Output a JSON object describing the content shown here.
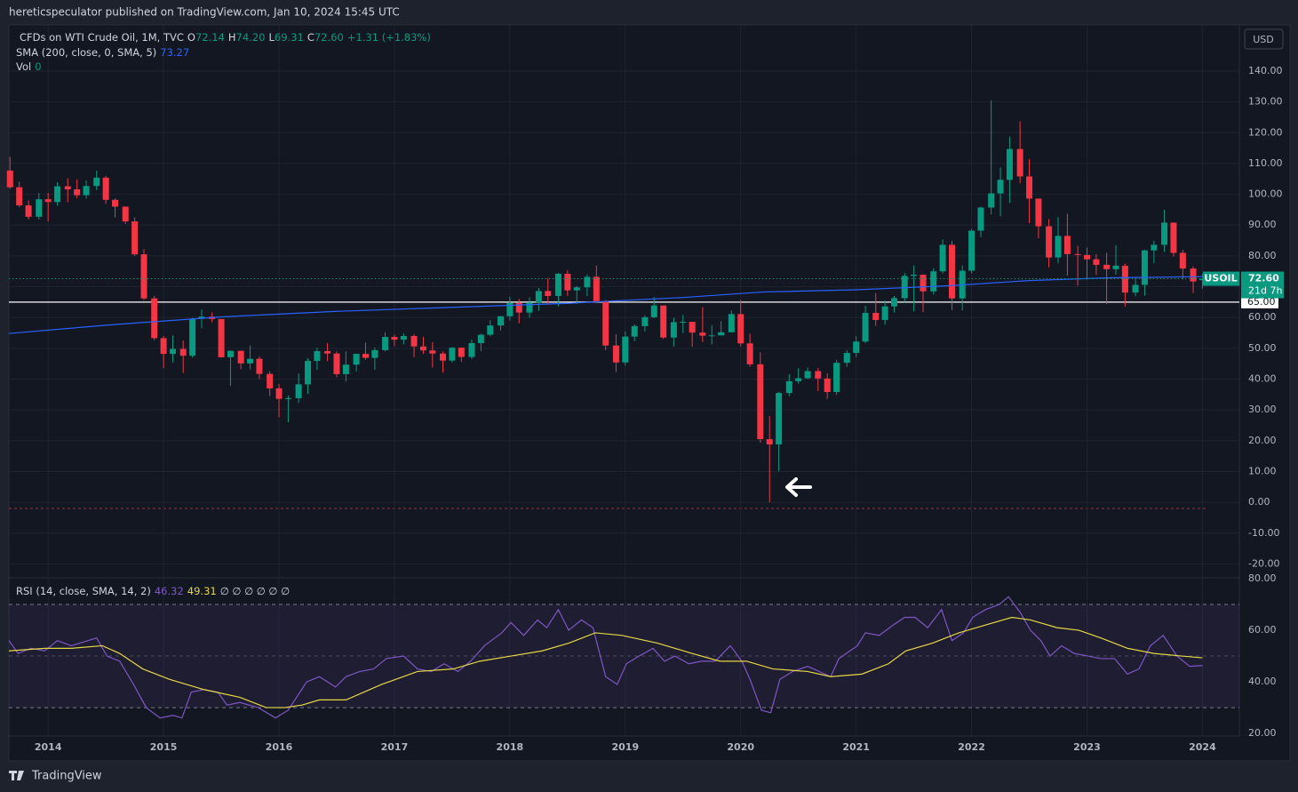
{
  "header": {
    "text": "hereticspeculator published on TradingView.com, Jan 10, 2024 15:45 UTC"
  },
  "footer": {
    "brand": "TradingView"
  },
  "chart_data": {
    "type": "candlestick",
    "title": "CFDs on WTI Crude Oil, 1M, TVC",
    "symbol": "USOIL",
    "currency": "USD",
    "countdown": "21d 7h",
    "change": "+1.31 (+1.83%)",
    "last_labels": [
      "72.14",
      "74.20",
      "69.31",
      "72.60"
    ],
    "up_color": "#089981",
    "down_color": "#f23645",
    "x": [
      2013.67,
      2013.75,
      2013.83,
      2013.92,
      2014.0,
      2014.08,
      2014.17,
      2014.25,
      2014.33,
      2014.42,
      2014.5,
      2014.58,
      2014.67,
      2014.75,
      2014.83,
      2014.92,
      2015.0,
      2015.08,
      2015.17,
      2015.25,
      2015.33,
      2015.42,
      2015.5,
      2015.58,
      2015.67,
      2015.75,
      2015.83,
      2015.92,
      2016.0,
      2016.08,
      2016.17,
      2016.25,
      2016.33,
      2016.42,
      2016.5,
      2016.58,
      2016.67,
      2016.75,
      2016.83,
      2016.92,
      2017.0,
      2017.08,
      2017.17,
      2017.25,
      2017.33,
      2017.42,
      2017.5,
      2017.58,
      2017.67,
      2017.75,
      2017.83,
      2017.92,
      2018.0,
      2018.08,
      2018.17,
      2018.25,
      2018.33,
      2018.42,
      2018.5,
      2018.58,
      2018.67,
      2018.75,
      2018.83,
      2018.92,
      2019.0,
      2019.08,
      2019.17,
      2019.25,
      2019.33,
      2019.42,
      2019.5,
      2019.58,
      2019.67,
      2019.75,
      2019.83,
      2019.92,
      2020.0,
      2020.08,
      2020.17,
      2020.25,
      2020.33,
      2020.42,
      2020.5,
      2020.58,
      2020.67,
      2020.75,
      2020.83,
      2020.92,
      2021.0,
      2021.08,
      2021.17,
      2021.25,
      2021.33,
      2021.42,
      2021.5,
      2021.58,
      2021.67,
      2021.75,
      2021.83,
      2021.92,
      2022.0,
      2022.08,
      2022.17,
      2022.25,
      2022.33,
      2022.42,
      2022.5,
      2022.58,
      2022.67,
      2022.75,
      2022.83,
      2022.92,
      2023.0,
      2023.08,
      2023.17,
      2023.25,
      2023.33,
      2023.42,
      2023.5,
      2023.58,
      2023.67,
      2023.75,
      2023.83,
      2023.92,
      2024.0
    ],
    "open": [
      107.7,
      102.3,
      96.4,
      92.7,
      98.4,
      97.5,
      102.6,
      101.6,
      99.7,
      102.7,
      105.4,
      98.2,
      96.0,
      91.2,
      80.5,
      66.2,
      53.3,
      48.2,
      49.8,
      47.6,
      59.6,
      60.3,
      59.5,
      47.1,
      49.2,
      45.1,
      46.6,
      41.7,
      37.0,
      33.6,
      33.8,
      38.3,
      45.9,
      49.1,
      48.3,
      41.6,
      44.7,
      48.2,
      46.9,
      49.4,
      53.7,
      52.8,
      54.0,
      50.6,
      49.3,
      48.3,
      46.0,
      50.2,
      47.2,
      51.7,
      54.4,
      57.4,
      60.4,
      64.7,
      61.6,
      64.9,
      68.6,
      67.0,
      74.2,
      68.8,
      69.8,
      73.2,
      65.3,
      50.9,
      45.4,
      53.8,
      57.2,
      60.1,
      63.9,
      53.5,
      58.5,
      58.6,
      55.1,
      54.1,
      54.2,
      55.2,
      61.1,
      51.6,
      44.8,
      20.5,
      18.8,
      35.5,
      39.3,
      40.3,
      42.6,
      40.2,
      35.8,
      45.3,
      48.5,
      52.2,
      61.5,
      59.2,
      63.6,
      66.3,
      73.5,
      73.9,
      68.5,
      75.0,
      83.6,
      66.2,
      75.2,
      88.2,
      95.7,
      100.3,
      104.7,
      114.7,
      105.8,
      98.6,
      89.6,
      79.5,
      86.5,
      80.6,
      80.3,
      78.9,
      77.1,
      75.7,
      76.8,
      68.1,
      70.6,
      81.8,
      83.6,
      90.8,
      81.0,
      75.9,
      72.14
    ],
    "high": [
      112.2,
      104.1,
      98.0,
      100.4,
      100.4,
      103.9,
      105.2,
      104.9,
      104.5,
      107.7,
      106.0,
      98.7,
      95.9,
      92.5,
      82.2,
      67.0,
      54.0,
      54.2,
      52.5,
      59.9,
      62.6,
      61.7,
      59.5,
      49.3,
      49.0,
      50.9,
      47.3,
      42.6,
      38.4,
      34.7,
      41.9,
      46.8,
      50.2,
      51.7,
      49.0,
      49.0,
      48.3,
      51.9,
      50.2,
      55.2,
      54.4,
      54.9,
      54.6,
      53.7,
      52.0,
      49.0,
      50.4,
      50.2,
      52.9,
      54.7,
      59.1,
      60.5,
      66.7,
      66.0,
      66.6,
      69.6,
      72.9,
      74.5,
      75.3,
      70.2,
      74.0,
      76.9,
      65.7,
      54.6,
      55.5,
      57.8,
      60.7,
      66.6,
      63.8,
      59.9,
      60.9,
      56.9,
      63.4,
      57.5,
      58.8,
      62.3,
      65.7,
      54.7,
      48.7,
      28.0,
      35.9,
      41.6,
      43.5,
      43.8,
      43.6,
      41.9,
      46.3,
      49.4,
      53.9,
      63.8,
      67.9,
      65.5,
      67.0,
      74.5,
      76.9,
      74.0,
      76.0,
      85.4,
      84.9,
      76.9,
      88.8,
      96.0,
      130.5,
      108.7,
      118.7,
      123.7,
      111.4,
      97.7,
      92.0,
      92.6,
      93.7,
      83.3,
      82.7,
      80.6,
      81.0,
      83.5,
      77.5,
      72.7,
      82.0,
      84.9,
      95.0,
      90.8,
      82.0,
      76.6,
      74.2
    ],
    "low": [
      101.8,
      95.8,
      91.8,
      91.8,
      91.2,
      96.3,
      97.4,
      98.7,
      98.6,
      101.4,
      96.9,
      92.5,
      90.4,
      80.0,
      65.7,
      52.6,
      43.6,
      45.4,
      42.0,
      47.0,
      56.5,
      58.4,
      47.0,
      37.8,
      43.2,
      43.1,
      40.0,
      34.5,
      27.6,
      26.0,
      32.3,
      35.2,
      43.0,
      45.8,
      40.6,
      39.2,
      42.5,
      46.3,
      43.0,
      49.0,
      50.7,
      51.3,
      47.1,
      48.2,
      43.8,
      42.1,
      45.4,
      45.6,
      46.5,
      49.1,
      53.9,
      55.8,
      59.0,
      58.1,
      59.9,
      62.1,
      64.2,
      63.6,
      67.0,
      64.4,
      67.0,
      64.9,
      49.4,
      42.3,
      44.4,
      52.3,
      55.4,
      59.8,
      53.0,
      50.6,
      55.0,
      50.5,
      52.0,
      51.3,
      55.0,
      55.4,
      50.6,
      44.0,
      19.3,
      0.0,
      10.1,
      34.5,
      38.5,
      40.0,
      36.1,
      33.6,
      34.9,
      44.0,
      47.1,
      51.7,
      57.3,
      57.6,
      61.6,
      65.0,
      62.0,
      61.7,
      67.5,
      74.3,
      62.4,
      62.3,
      74.3,
      86.1,
      93.5,
      92.9,
      97.2,
      103.6,
      90.6,
      85.7,
      76.3,
      77.6,
      73.6,
      70.3,
      72.3,
      73.8,
      64.4,
      73.9,
      63.6,
      66.9,
      67.1,
      77.6,
      81.3,
      79.8,
      72.4,
      67.9,
      69.31
    ],
    "close": [
      102.3,
      96.4,
      92.7,
      98.4,
      97.5,
      102.6,
      101.6,
      99.7,
      102.7,
      105.4,
      98.2,
      96.0,
      91.2,
      80.5,
      66.2,
      53.3,
      48.2,
      49.8,
      47.6,
      59.6,
      60.3,
      59.5,
      47.1,
      49.2,
      45.1,
      46.6,
      41.7,
      37.0,
      33.6,
      33.8,
      38.3,
      45.9,
      49.1,
      48.3,
      41.6,
      44.7,
      48.2,
      46.9,
      49.4,
      53.7,
      52.8,
      54.0,
      50.6,
      49.3,
      48.3,
      46.0,
      50.2,
      47.2,
      51.7,
      54.4,
      57.4,
      60.4,
      64.7,
      61.6,
      64.9,
      68.6,
      67.0,
      74.2,
      68.8,
      69.8,
      73.2,
      65.3,
      50.9,
      45.4,
      53.8,
      57.2,
      60.1,
      63.9,
      53.5,
      58.5,
      58.6,
      55.1,
      54.1,
      54.2,
      55.2,
      61.1,
      51.6,
      44.8,
      20.5,
      18.8,
      35.5,
      39.3,
      40.3,
      42.6,
      40.2,
      35.8,
      45.3,
      48.5,
      52.2,
      61.5,
      59.2,
      63.6,
      66.3,
      73.5,
      73.9,
      68.5,
      75.0,
      83.6,
      66.2,
      75.2,
      88.2,
      95.7,
      100.3,
      104.7,
      114.7,
      105.8,
      98.6,
      89.6,
      79.5,
      86.5,
      80.6,
      80.3,
      78.9,
      77.1,
      75.7,
      76.8,
      68.1,
      70.6,
      81.8,
      83.6,
      90.8,
      81.0,
      75.9,
      71.7,
      72.6
    ],
    "xlim": [
      2013.66,
      2024.32
    ],
    "xticks": [
      2014,
      2015,
      2016,
      2017,
      2018,
      2019,
      2020,
      2021,
      2022,
      2023,
      2024
    ],
    "ylim": [
      -24.5,
      155
    ],
    "yticks": [
      {
        "value": -20,
        "label": "-20.00"
      },
      {
        "value": -10,
        "label": "-10.00"
      },
      {
        "value": 0,
        "label": "0.00"
      },
      {
        "value": 10,
        "label": "10.00"
      },
      {
        "value": 20,
        "label": "20.00"
      },
      {
        "value": 30,
        "label": "30.00"
      },
      {
        "value": 40,
        "label": "40.00"
      },
      {
        "value": 50,
        "label": "50.00"
      },
      {
        "value": 60,
        "label": "60.00"
      },
      {
        "value": 70,
        "label": "70.00"
      },
      {
        "value": 80,
        "label": "80.00"
      },
      {
        "value": 90,
        "label": "90.00"
      },
      {
        "value": 100,
        "label": "100.00"
      },
      {
        "value": 110,
        "label": "110.00"
      },
      {
        "value": 120,
        "label": "120.00"
      },
      {
        "value": 130,
        "label": "130.00"
      },
      {
        "value": 140,
        "label": "140.00"
      }
    ],
    "grid": true,
    "hline": {
      "value": 65,
      "label": "65.00",
      "color": "#ffffff"
    },
    "sma": {
      "name": "SMA (200, close, 0, SMA, 5)",
      "color": "#2962ff",
      "x": [
        2013.66,
        2014.5,
        2015.5,
        2016.5,
        2017.5,
        2018.5,
        2019.5,
        2020.2,
        2021.0,
        2021.8,
        2022.5,
        2023.2,
        2024.0
      ],
      "values": [
        54.8,
        57.5,
        60.2,
        62.0,
        63.3,
        64.6,
        66.5,
        68.3,
        69.0,
        70.3,
        72.0,
        72.9,
        73.27
      ]
    },
    "volume": {
      "name": "Vol",
      "value": 0
    },
    "rsi": {
      "name": "RSI (14, close, SMA, 14, 2)",
      "color": "#7e57c2",
      "nulls": "∅ ∅ ∅ ∅ ∅ ∅",
      "ylim": [
        19,
        80
      ],
      "yticks": [
        {
          "value": 20,
          "label": "20.00"
        },
        {
          "value": 40,
          "label": "40.00"
        },
        {
          "value": 60,
          "label": "60.00"
        },
        {
          "value": 80,
          "label": "80.00"
        }
      ],
      "bands": [
        30,
        50,
        70
      ],
      "x": [
        2013.66,
        2013.74,
        2013.85,
        2013.97,
        2014.08,
        2014.2,
        2014.42,
        2014.51,
        2014.62,
        2014.74,
        2014.85,
        2014.97,
        2015.08,
        2015.16,
        2015.24,
        2015.35,
        2015.47,
        2015.55,
        2015.66,
        2015.82,
        2015.97,
        2016.08,
        2016.24,
        2016.35,
        2016.49,
        2016.58,
        2016.7,
        2016.82,
        2016.93,
        2017.08,
        2017.2,
        2017.32,
        2017.43,
        2017.55,
        2017.66,
        2017.78,
        2017.93,
        2018.01,
        2018.12,
        2018.24,
        2018.32,
        2018.42,
        2018.51,
        2018.62,
        2018.72,
        2018.83,
        2018.93,
        2019.01,
        2019.12,
        2019.24,
        2019.34,
        2019.43,
        2019.55,
        2019.66,
        2019.78,
        2019.91,
        2020.01,
        2020.08,
        2020.18,
        2020.26,
        2020.34,
        2020.45,
        2020.58,
        2020.68,
        2020.78,
        2020.85,
        2021.01,
        2021.08,
        2021.2,
        2021.32,
        2021.42,
        2021.51,
        2021.62,
        2021.74,
        2021.83,
        2021.93,
        2022.01,
        2022.12,
        2022.24,
        2022.32,
        2022.42,
        2022.51,
        2022.6,
        2022.68,
        2022.78,
        2022.89,
        2023.01,
        2023.12,
        2023.24,
        2023.35,
        2023.45,
        2023.55,
        2023.66,
        2023.78,
        2023.89,
        2024.0
      ],
      "values": [
        56,
        51,
        53,
        52,
        56,
        54,
        57,
        50,
        48,
        39,
        30,
        26,
        27,
        26,
        36,
        37,
        36,
        31,
        32,
        30,
        26,
        29,
        40,
        42,
        38,
        42,
        44,
        45,
        49,
        50,
        45,
        44,
        47,
        44,
        48,
        54,
        59,
        63,
        58,
        64,
        61,
        68,
        60,
        64,
        61,
        42,
        39,
        47,
        50,
        53,
        48,
        50,
        47,
        48,
        48,
        54,
        48,
        41,
        29,
        28,
        41,
        44,
        46,
        44,
        42,
        49,
        54,
        59,
        58,
        62,
        65,
        65,
        61,
        68,
        56,
        59,
        65,
        68,
        70,
        73,
        67,
        60,
        56,
        50,
        54,
        51,
        50,
        49,
        49,
        43,
        45,
        54,
        58,
        50,
        46,
        46.32
      ],
      "sma": {
        "color": "#e6d845",
        "x": [
          2013.66,
          2013.97,
          2014.2,
          2014.47,
          2014.62,
          2014.82,
          2015.05,
          2015.35,
          2015.66,
          2015.89,
          2016.05,
          2016.2,
          2016.35,
          2016.58,
          2016.89,
          2017.2,
          2017.51,
          2017.74,
          2018.01,
          2018.28,
          2018.51,
          2018.74,
          2018.97,
          2019.28,
          2019.58,
          2019.82,
          2020.05,
          2020.28,
          2020.58,
          2020.78,
          2021.05,
          2021.28,
          2021.43,
          2021.66,
          2021.89,
          2022.12,
          2022.35,
          2022.51,
          2022.74,
          2022.93,
          2023.12,
          2023.35,
          2023.58,
          2023.82,
          2024.0
        ],
        "values": [
          52,
          53,
          53,
          54,
          51,
          45,
          41,
          37,
          34,
          30,
          30,
          31,
          33,
          33,
          39,
          44,
          45,
          48,
          50,
          52,
          55,
          59,
          58,
          55,
          51,
          48,
          48,
          45,
          44,
          42,
          43,
          47,
          52,
          55,
          59,
          62,
          65,
          64,
          61,
          60,
          57,
          53,
          51,
          50,
          49.31
        ]
      }
    }
  }
}
